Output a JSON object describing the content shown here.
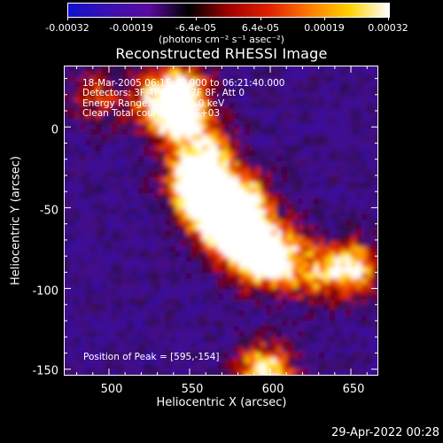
{
  "colorbar": {
    "ticks": [
      "-0.00032",
      "-0.00019",
      "-6.4e-05",
      "6.4e-05",
      "0.00019",
      "0.00032"
    ],
    "units": "(photons cm⁻² s⁻¹ asec⁻²)",
    "colors": [
      "#1010d0",
      "#3a10b0",
      "#5a0aa0",
      "#000000",
      "#a00000",
      "#e02000",
      "#ff7a00",
      "#ffd000",
      "#ffffff"
    ]
  },
  "chart_data": {
    "type": "heatmap",
    "title": "Reconstructed RHESSI Image",
    "xlabel": "Heliocentric X (arcsec)",
    "ylabel": "Heliocentric Y (arcsec)",
    "xlim": [
      472,
      667
    ],
    "ylim": [
      -154,
      38
    ],
    "xticks": [
      "500",
      "550",
      "600",
      "650"
    ],
    "yticks": [
      "0",
      "-50",
      "-100",
      "-150"
    ],
    "annotations": {
      "time": "18-Mar-2005 06:15:40.000 to 06:21:40.000",
      "detectors": "Detectors: 3F 4F 5F 6F 7F 8F, Att 0",
      "energy": "Energy Range: 12.0 - 25.0 keV",
      "clean": "Clean     Total counts: 4.95E+03",
      "peak": "Position of Peak = [595,-154]"
    },
    "bright_regions": [
      {
        "x": 578,
        "y": -55,
        "level": 0.95
      },
      {
        "x": 558,
        "y": -35,
        "level": 0.85
      },
      {
        "x": 545,
        "y": 10,
        "level": 0.65
      },
      {
        "x": 648,
        "y": -85,
        "level": 0.9
      },
      {
        "x": 595,
        "y": -150,
        "level": 1.0
      },
      {
        "x": 625,
        "y": -90,
        "level": 0.55
      },
      {
        "x": 490,
        "y": 20,
        "level": 0.45
      }
    ]
  },
  "footer": {
    "timestamp": "29-Apr-2022 00:28"
  }
}
